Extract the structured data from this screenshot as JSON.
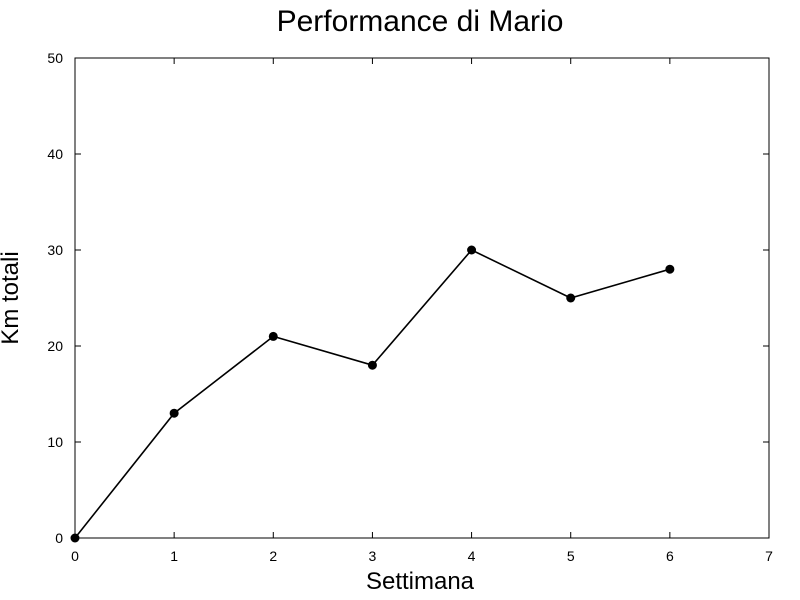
{
  "chart_data": {
    "type": "line",
    "title": "Performance di Mario",
    "xlabel": "Settimana",
    "ylabel": "Km totali",
    "xlim": [
      0,
      7
    ],
    "ylim": [
      0,
      50
    ],
    "xticks": [
      "0",
      "1",
      "2",
      "3",
      "4",
      "5",
      "6",
      "7"
    ],
    "yticks": [
      "0",
      "10",
      "20",
      "30",
      "40",
      "50"
    ],
    "grid": false,
    "series": [
      {
        "x": [
          0,
          1,
          2,
          3,
          4,
          5,
          6
        ],
        "y": [
          0,
          13,
          21,
          18,
          30,
          25,
          28
        ],
        "color": "#000000",
        "marker": "circle"
      }
    ]
  }
}
